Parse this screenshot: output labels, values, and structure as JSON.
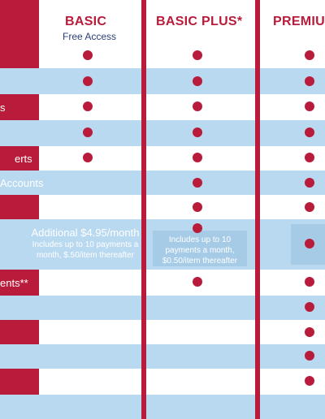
{
  "plans": [
    {
      "name": "BASIC",
      "subtitle": "Free Access"
    },
    {
      "name": "BASIC PLUS*",
      "subtitle": ""
    },
    {
      "name": "PREMIU",
      "subtitle": ""
    }
  ],
  "rows": [
    {
      "label": "",
      "basic": true,
      "basic_plus": true,
      "premium": true
    },
    {
      "label": "",
      "basic": true,
      "basic_plus": true,
      "premium": true
    },
    {
      "label": "s",
      "basic": true,
      "basic_plus": true,
      "premium": true
    },
    {
      "label": "",
      "basic": true,
      "basic_plus": true,
      "premium": true
    },
    {
      "label": "erts",
      "basic": true,
      "basic_plus": true,
      "premium": true
    },
    {
      "label": "Accounts",
      "basic": false,
      "basic_plus": true,
      "premium": true
    },
    {
      "label": "",
      "basic": false,
      "basic_plus": true,
      "premium": true
    },
    {
      "label": "",
      "basic": false,
      "basic_plus": true,
      "premium": true
    },
    {
      "label": "ents**",
      "basic": false,
      "basic_plus": true,
      "premium": true
    },
    {
      "label": "",
      "basic": false,
      "basic_plus": false,
      "premium": true
    },
    {
      "label": "",
      "basic": false,
      "basic_plus": false,
      "premium": true
    },
    {
      "label": "",
      "basic": false,
      "basic_plus": false,
      "premium": true
    },
    {
      "label": "",
      "basic": false,
      "basic_plus": false,
      "premium": true
    },
    {
      "label": "",
      "basic": false,
      "basic_plus": false,
      "premium": false
    }
  ],
  "basic_payments_note": {
    "price": "Additional $4.95/month",
    "details": "Includes up to 10 payments a month, $.50/item thereafter"
  },
  "basic_plus_payments_note": {
    "details": "Includes up to 10 payments a month, $0.50/item thereafter"
  },
  "colors": {
    "accent": "#b81c3a",
    "band_blue": "#b9d9f0",
    "subtitle": "#2a3e7a"
  }
}
